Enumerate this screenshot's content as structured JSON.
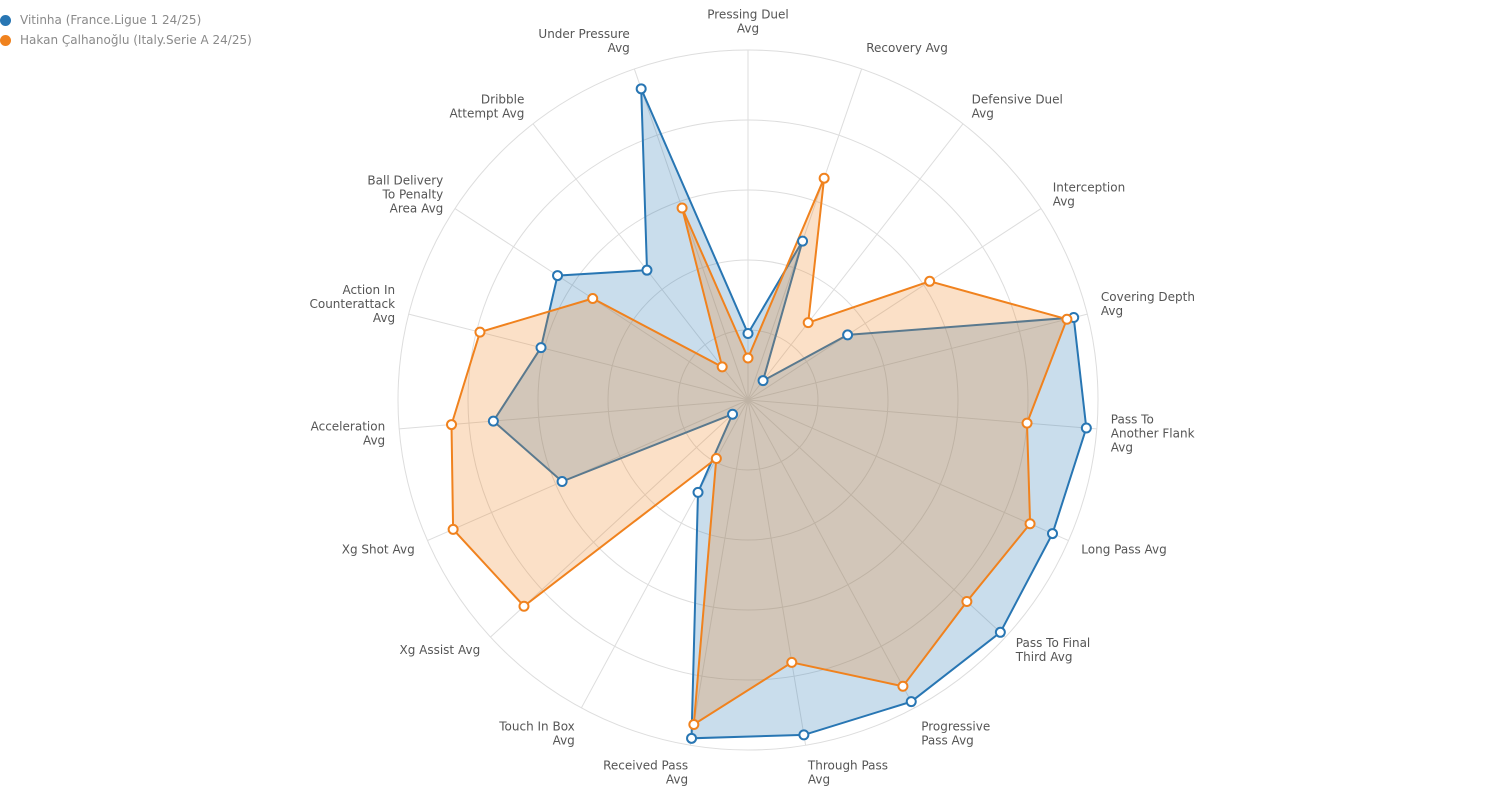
{
  "legend": [
    {
      "label": "Vitinha (France.Ligue 1 24/25)",
      "color": "#2876b3"
    },
    {
      "label": "Hakan Çalhanoğlu (Italy.Serie A 24/25)",
      "color": "#f0821e"
    }
  ],
  "chart_data": {
    "type": "radar",
    "axes": [
      "Pressing Duel Avg",
      "Recovery Avg",
      "Defensive Duel Avg",
      "Interception Avg",
      "Covering Depth Avg",
      "Pass To Another Flank Avg",
      "Long Pass Avg",
      "Pass To Final Third Avg",
      "Progressive Pass Avg",
      "Through Pass Avg",
      "Received Pass Avg",
      "Touch In Box Avg",
      "Xg Assist Avg",
      "Xg Shot Avg",
      "Acceleration Avg",
      "Action In Counterattack Avg",
      "Ball Delivery To Penalty Area Avg",
      "Dribble Attempt Avg",
      "Under Pressure Avg"
    ],
    "axis_label_lines": [
      [
        "Pressing Duel",
        "Avg"
      ],
      [
        "Recovery Avg"
      ],
      [
        "Defensive Duel",
        "Avg"
      ],
      [
        "Interception",
        "Avg"
      ],
      [
        "Covering Depth",
        "Avg"
      ],
      [
        "Pass To",
        "Another Flank",
        "Avg"
      ],
      [
        "Long Pass Avg"
      ],
      [
        "Pass To Final",
        "Third Avg"
      ],
      [
        "Progressive",
        "Pass Avg"
      ],
      [
        "Through Pass",
        "Avg"
      ],
      [
        "Received Pass",
        "Avg"
      ],
      [
        "Touch In Box",
        "Avg"
      ],
      [
        "Xg Assist Avg"
      ],
      [
        "Xg Shot Avg"
      ],
      [
        "Acceleration",
        "Avg"
      ],
      [
        "Action In",
        "Counterattack",
        "Avg"
      ],
      [
        "Ball Delivery",
        "To Penalty",
        "Area Avg"
      ],
      [
        "Dribble",
        "Attempt Avg"
      ],
      [
        "Under Pressure",
        "Avg"
      ]
    ],
    "series": [
      {
        "name": "Vitinha (France.Ligue 1 24/25)",
        "color": "#2876b3",
        "values": [
          0.19,
          0.48,
          0.07,
          0.34,
          0.96,
          0.97,
          0.95,
          0.98,
          0.98,
          0.97,
          0.98,
          0.3,
          0.06,
          0.58,
          0.73,
          0.61,
          0.65,
          0.47,
          0.94
        ]
      },
      {
        "name": "Hakan Çalhanoğlu (Italy.Serie A 24/25)",
        "color": "#f0821e",
        "values": [
          0.12,
          0.67,
          0.28,
          0.62,
          0.94,
          0.8,
          0.88,
          0.85,
          0.93,
          0.76,
          0.94,
          0.19,
          0.87,
          0.92,
          0.85,
          0.79,
          0.53,
          0.12,
          0.58
        ]
      }
    ],
    "range": [
      0,
      1
    ],
    "ring_count": 5,
    "grid": true,
    "legend_position": "top-left"
  }
}
